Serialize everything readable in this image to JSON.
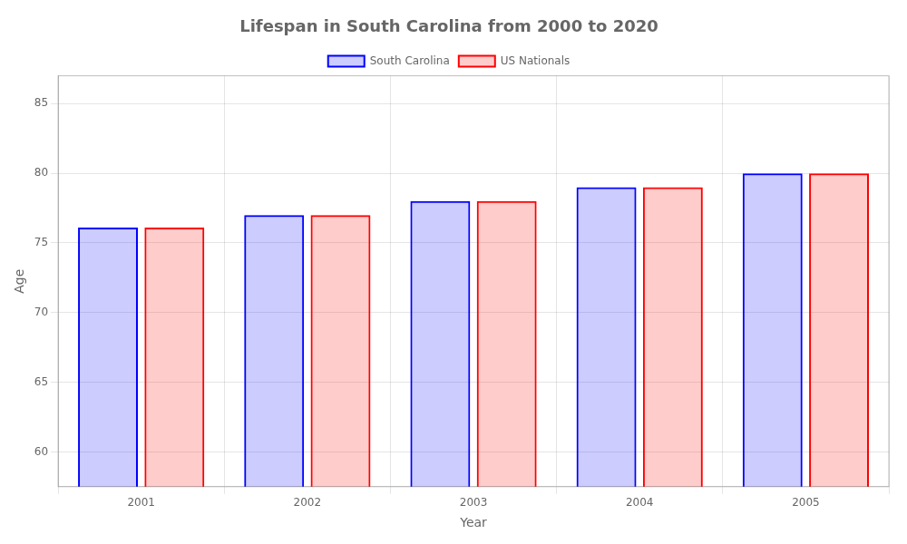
{
  "chart_data": {
    "type": "bar",
    "title": "Lifespan in South Carolina from 2000 to 2020",
    "xlabel": "Year",
    "ylabel": "Age",
    "categories": [
      "2001",
      "2002",
      "2003",
      "2004",
      "2005"
    ],
    "series": [
      {
        "name": "South Carolina",
        "color": "#0000ff",
        "values": [
          76.1,
          77.0,
          78.0,
          79.0,
          80.0
        ]
      },
      {
        "name": "US Nationals",
        "color": "#ff0000",
        "values": [
          76.1,
          77.0,
          78.0,
          79.0,
          80.0
        ]
      }
    ],
    "ylim": [
      57.5,
      87
    ],
    "yticks": [
      60,
      65,
      70,
      75,
      80,
      85
    ],
    "grid": true,
    "legend": "top"
  }
}
